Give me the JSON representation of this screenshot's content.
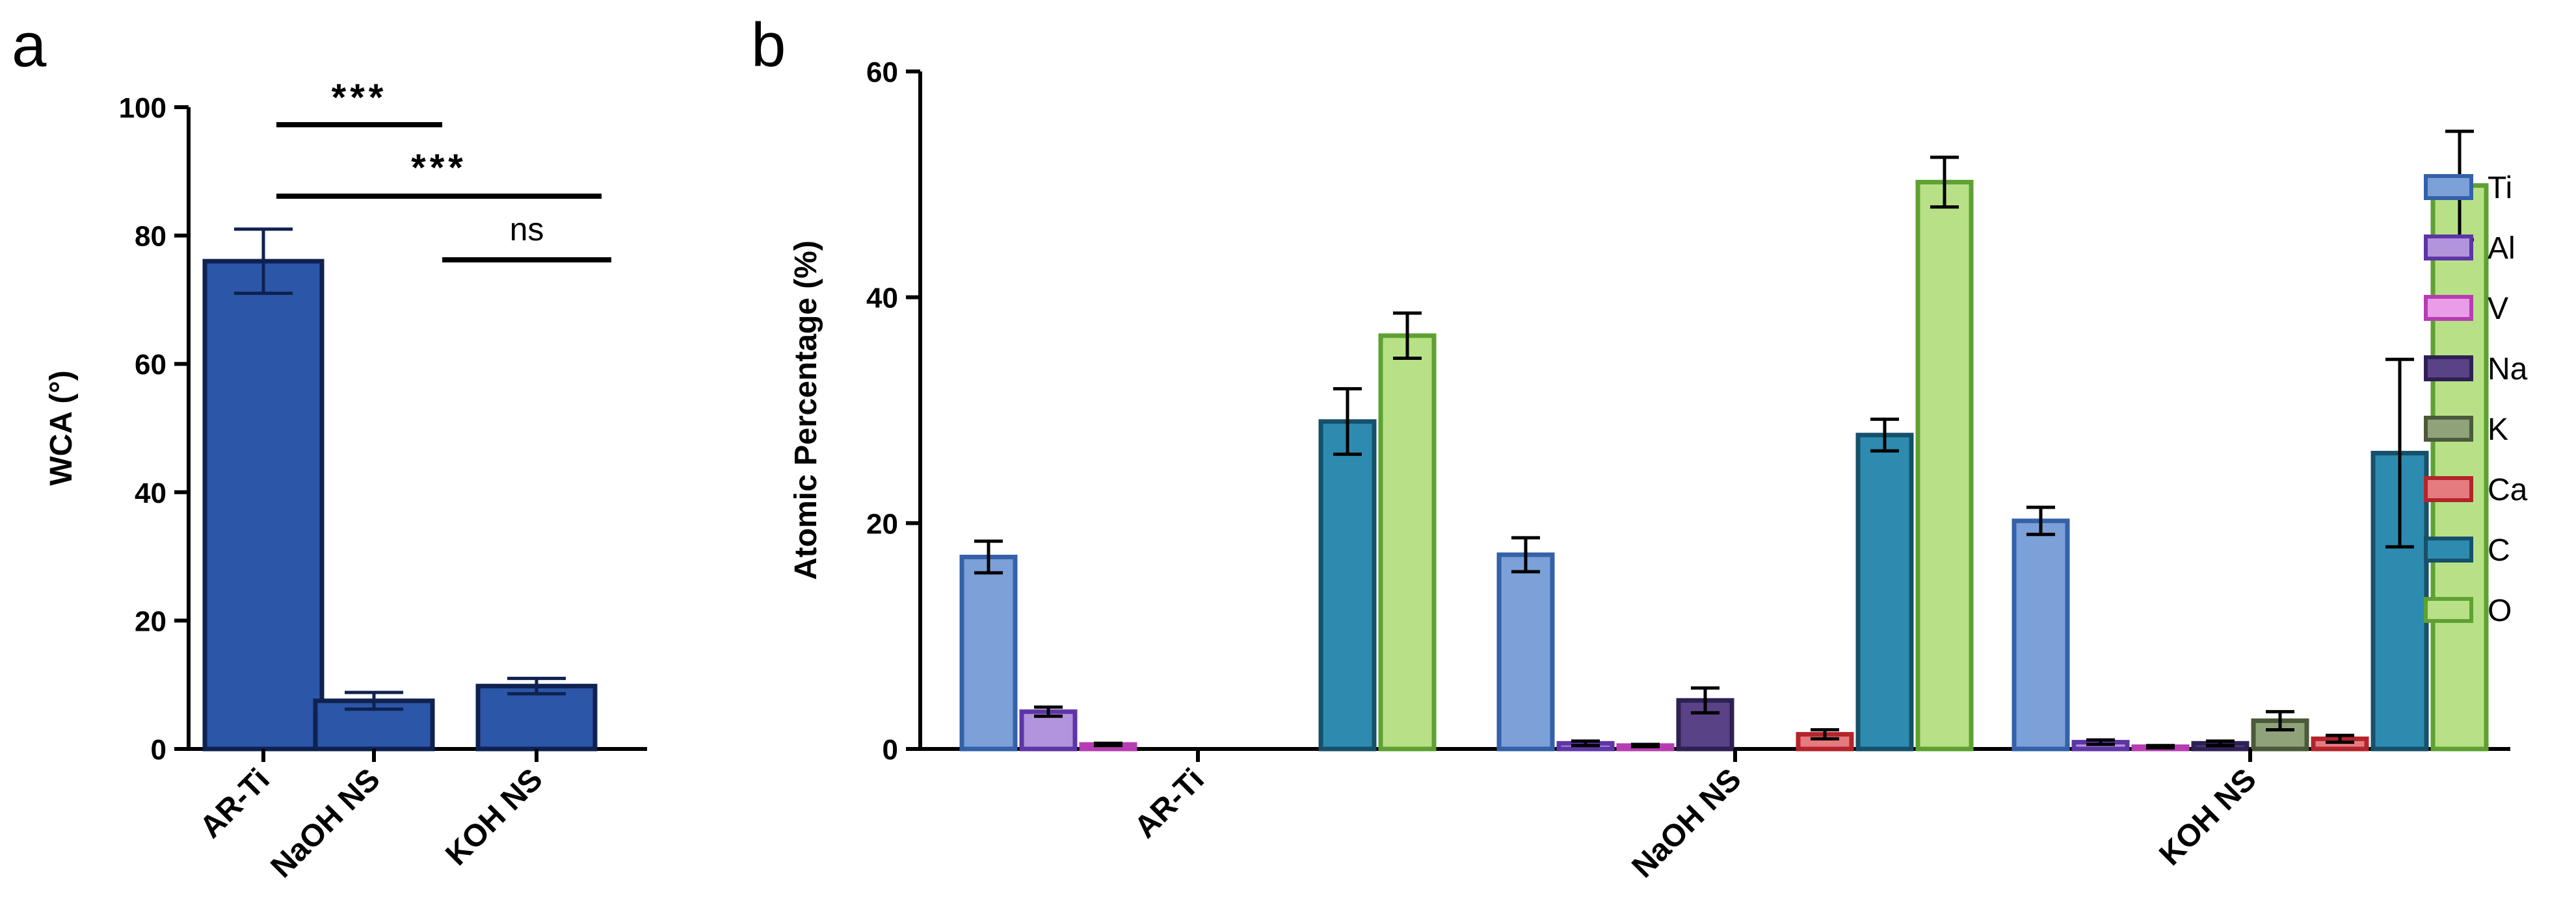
{
  "panels": {
    "a": {
      "label": "a"
    },
    "b": {
      "label": "b"
    }
  },
  "chart_data": [
    {
      "type": "bar",
      "panel": "a",
      "ylabel": "WCA (°)",
      "ylim": [
        0,
        100
      ],
      "yticks": [
        0,
        20,
        40,
        60,
        80,
        100
      ],
      "categories": [
        "AR-Ti",
        "NaOH NS",
        "KOH NS"
      ],
      "values": [
        76,
        7.5,
        9.8
      ],
      "errors": [
        5,
        1.3,
        1.2
      ],
      "bar_color": "#2c56a8",
      "bar_edge": "#0f2150",
      "significance": [
        {
          "label": "***",
          "from": "AR-Ti",
          "to": "NaOH NS"
        },
        {
          "label": "***",
          "from": "AR-Ti",
          "to": "KOH NS"
        },
        {
          "label": "ns",
          "from": "NaOH NS",
          "to": "KOH NS"
        }
      ]
    },
    {
      "type": "bar",
      "panel": "b",
      "ylabel": "Atomic Percentage (%)",
      "ylim": [
        0,
        60
      ],
      "yticks": [
        0,
        20,
        40,
        60
      ],
      "categories": [
        "AR-Ti",
        "NaOH NS",
        "KOH NS"
      ],
      "legend_position": "right",
      "series": [
        {
          "name": "Ti",
          "values": [
            17.0,
            17.2,
            20.2
          ],
          "errors": [
            1.4,
            1.5,
            1.2
          ],
          "fill": "#7ca0d8",
          "edge": "#3461a8"
        },
        {
          "name": "Al",
          "values": [
            3.3,
            0.5,
            0.6
          ],
          "errors": [
            0.4,
            0.2,
            0.2
          ],
          "fill": "#b294dc",
          "edge": "#5e35a6"
        },
        {
          "name": "V",
          "values": [
            0.4,
            0.3,
            0.2
          ],
          "errors": [
            0.1,
            0.1,
            0.1
          ],
          "fill": "#eb9ce8",
          "edge": "#b63db1"
        },
        {
          "name": "Na",
          "values": [
            0.0,
            4.3,
            0.5
          ],
          "errors": [
            0.0,
            1.1,
            0.2
          ],
          "fill": "#5a4287",
          "edge": "#2f2054"
        },
        {
          "name": "K",
          "values": [
            0.0,
            0.0,
            2.5
          ],
          "errors": [
            0.0,
            0.0,
            0.8
          ],
          "fill": "#8fa27a",
          "edge": "#4b5a3a"
        },
        {
          "name": "Ca",
          "values": [
            0.0,
            1.3,
            0.9
          ],
          "errors": [
            0.0,
            0.4,
            0.3
          ],
          "fill": "#e57b7e",
          "edge": "#b3242c"
        },
        {
          "name": "C",
          "values": [
            29.0,
            27.8,
            26.2
          ],
          "errors": [
            2.9,
            1.4,
            8.3
          ],
          "fill": "#2e8bb0",
          "edge": "#17506a"
        },
        {
          "name": "O",
          "values": [
            36.6,
            50.2,
            49.9
          ],
          "errors": [
            2.0,
            2.2,
            4.8
          ],
          "fill": "#b8e187",
          "edge": "#5ea132"
        }
      ]
    }
  ]
}
